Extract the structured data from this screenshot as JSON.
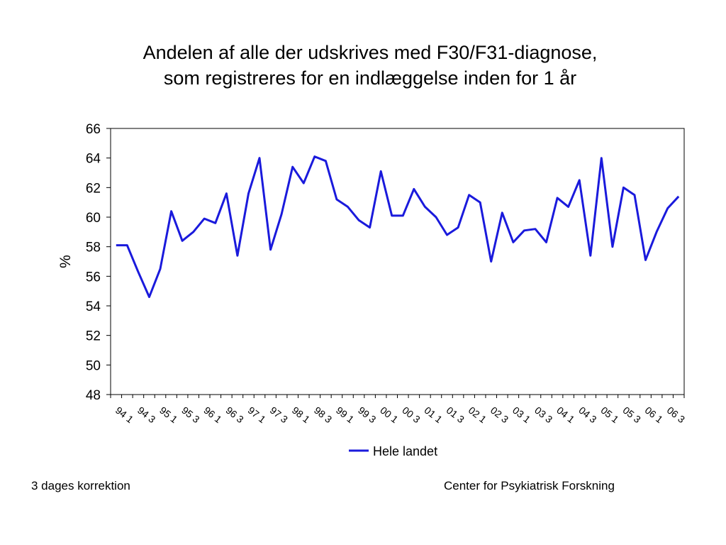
{
  "chart_data": {
    "type": "line",
    "title_line1": "Andelen af alle der udskrives med F30/F31-diagnose,",
    "title_line2": "som registreres for en indlæggelse inden for 1 år",
    "ylabel": "%",
    "xlabel": "",
    "ylim": [
      48,
      66
    ],
    "yticks": [
      48,
      50,
      52,
      54,
      56,
      58,
      60,
      62,
      64,
      66
    ],
    "grid": false,
    "legend_position": "bottom",
    "x_tick_labels": [
      "94 1",
      "94 3",
      "95 1",
      "95 3",
      "96 1",
      "96 3",
      "97 1",
      "97 3",
      "98 1",
      "98 3",
      "99 1",
      "99 3",
      "00 1",
      "00 3",
      "01 1",
      "01 3",
      "02 1",
      "02 3",
      "03 1",
      "03 3",
      "04 1",
      "04 3",
      "05 1",
      "05 3",
      "06 1",
      "06 3"
    ],
    "series": [
      {
        "name": "Hele landet",
        "color": "#1a1adc",
        "values": [
          58.1,
          58.1,
          56.3,
          54.6,
          56.5,
          60.4,
          58.4,
          59.0,
          59.9,
          59.6,
          61.6,
          57.4,
          61.6,
          64.0,
          57.8,
          60.2,
          63.4,
          62.3,
          64.1,
          63.8,
          61.2,
          60.7,
          59.8,
          59.3,
          63.1,
          60.1,
          60.1,
          61.9,
          60.7,
          60.0,
          58.8,
          59.3,
          61.5,
          61.0,
          57.0,
          60.3,
          58.3,
          59.1,
          59.2,
          58.3,
          61.3,
          60.7,
          62.5,
          57.4,
          64.0,
          58.0,
          62.0,
          61.5,
          57.1,
          59.0,
          60.6,
          61.4
        ]
      }
    ]
  },
  "footer": {
    "left": "3 dages korrektion",
    "right": "Center for Psykiatrisk Forskning"
  }
}
